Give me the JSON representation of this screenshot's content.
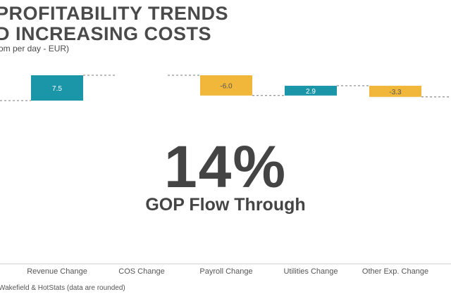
{
  "header": {
    "title_line1": "PROFITABILITY TRENDS",
    "title_line2": "D INCREASING COSTS",
    "subtitle": "om per day - EUR)"
  },
  "chart_data": {
    "type": "bar",
    "subtype": "waterfall",
    "categories": [
      "Revenue Change",
      "COS Change",
      "Payroll Change",
      "Utilities Change",
      "Other Exp. Change"
    ],
    "values": [
      7.5,
      0,
      -6.0,
      2.9,
      -3.3
    ],
    "labels": [
      "7.5",
      "",
      "-6.0",
      "2.9",
      "-3.3"
    ],
    "colors": {
      "increase": "#1a96a8",
      "decrease": "#f0b73a",
      "increase_label": "#ffffff",
      "decrease_label": "#555555",
      "connector": "#777777",
      "axis": "#cccccc"
    }
  },
  "highlight": {
    "value": "14%",
    "caption": "GOP Flow Through"
  },
  "footer": {
    "source": "Wakefield & HotStats (data are rounded)"
  }
}
